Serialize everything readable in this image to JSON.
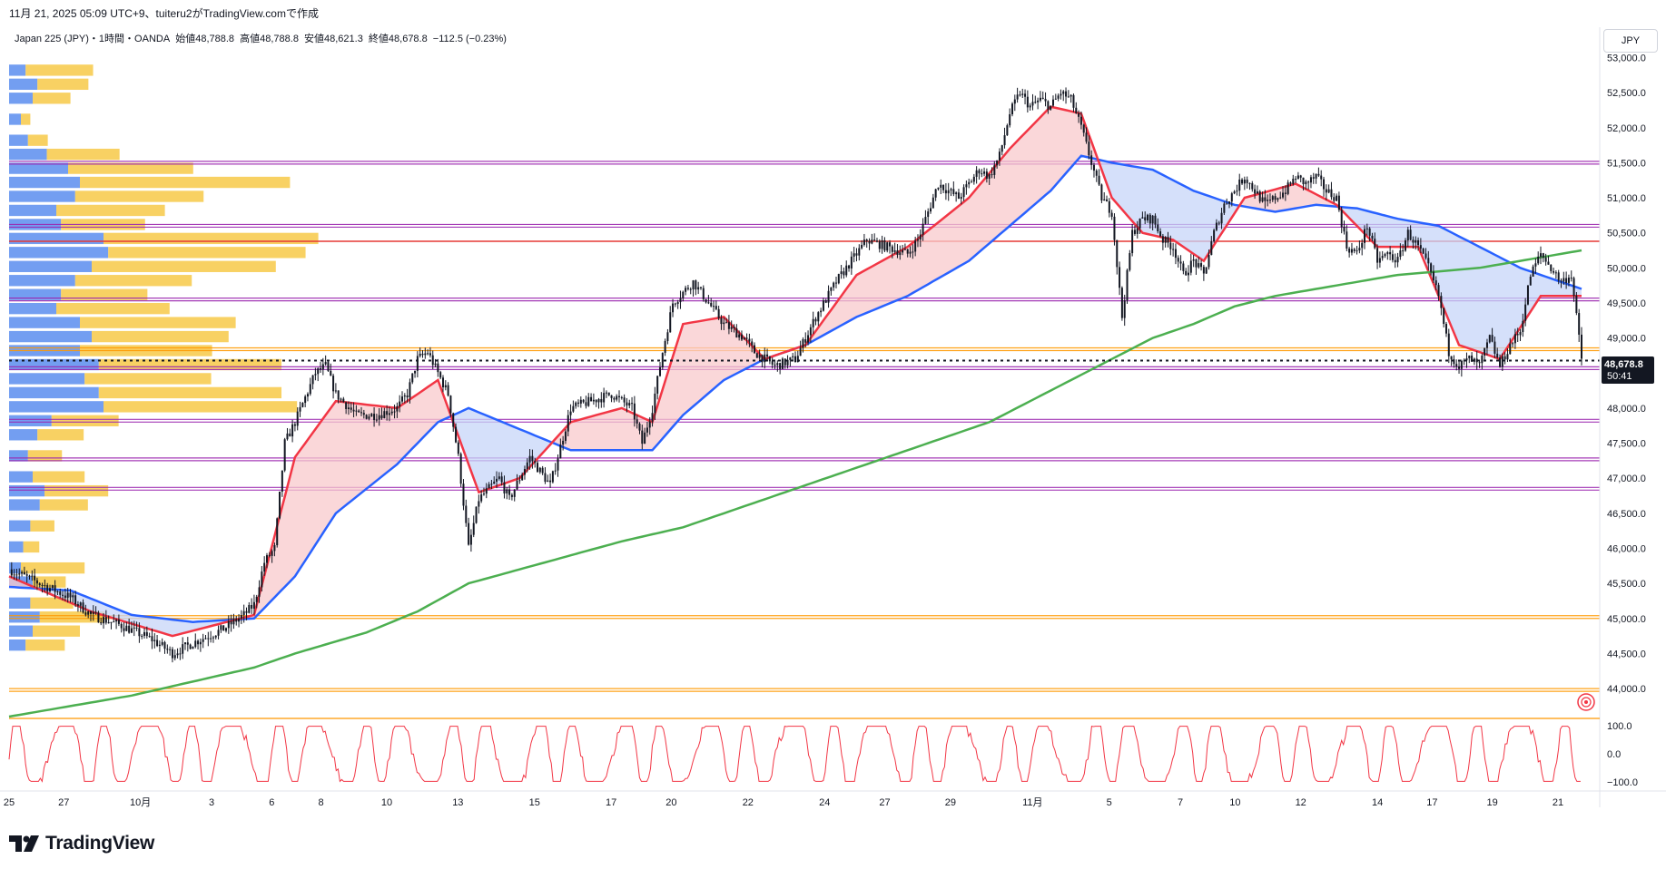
{
  "caption": "11月 21, 2025 05:09 UTC+9、tuiteru2がTradingView.comで作成",
  "legend": {
    "symbol": "Japan 225 (JPY)・1時間・OANDA",
    "open": "始値48,788.8",
    "high": "高値48,788.8",
    "low": "安値48,621.3",
    "close": "終値48,678.8",
    "change": "−112.5 (−0.23%)"
  },
  "currency": "JPY",
  "price_tag": {
    "price": "48,678.8",
    "countdown": "50:41"
  },
  "brand": {
    "name": "TradingView"
  },
  "colors": {
    "candle": "#131722",
    "ema_fast": "#f23645",
    "ema_slow": "#2962ff",
    "sma_long": "#4caf50",
    "fill_bull": "#f8c9cc",
    "fill_bear": "#c7d6f8",
    "vp_up": "#5b8def",
    "vp_down": "#f7c948",
    "level_purple": "#9c27b0",
    "level_orange": "#ff9800",
    "level_red": "#e53935",
    "oscillator": "#f23645"
  },
  "chart_data": [
    {
      "type": "candlestick",
      "title": "",
      "xlabel": "",
      "ylabel": "",
      "ylim": [
        43600,
        53200
      ],
      "y_ticks": [
        "53,000.0",
        "52,500.0",
        "52,000.0",
        "51,500.0",
        "51,000.0",
        "50,500.0",
        "50,000.0",
        "49,500.0",
        "49,000.0",
        "48,500.0",
        "48,000.0",
        "47,500.0",
        "47,000.0",
        "46,500.0",
        "46,000.0",
        "45,500.0",
        "45,000.0",
        "44,500.0",
        "44,000.0"
      ],
      "x_ticks": [
        "25",
        "27",
        "10月",
        "3",
        "6",
        "8",
        "10",
        "13",
        "15",
        "17",
        "20",
        "22",
        "24",
        "27",
        "29",
        "11月",
        "5",
        "7",
        "10",
        "12",
        "14",
        "17",
        "19",
        "21"
      ],
      "price_path": [
        [
          0,
          45700
        ],
        [
          3,
          45500
        ],
        [
          6,
          45300
        ],
        [
          8,
          45050
        ],
        [
          11,
          44900
        ],
        [
          14,
          44700
        ],
        [
          16,
          44500
        ],
        [
          18,
          44650
        ],
        [
          21,
          44850
        ],
        [
          23,
          45050
        ],
        [
          24,
          45200
        ],
        [
          25,
          45800
        ],
        [
          26,
          46000
        ],
        [
          27,
          47500
        ],
        [
          28,
          47800
        ],
        [
          30,
          48500
        ],
        [
          31,
          48600
        ],
        [
          32,
          48200
        ],
        [
          34,
          47900
        ],
        [
          36,
          47900
        ],
        [
          38,
          48000
        ],
        [
          39,
          48200
        ],
        [
          40,
          48700
        ],
        [
          41,
          48800
        ],
        [
          42,
          48500
        ],
        [
          43,
          48200
        ],
        [
          44,
          47300
        ],
        [
          45,
          46000
        ],
        [
          46,
          46700
        ],
        [
          48,
          47000
        ],
        [
          49,
          46700
        ],
        [
          51,
          47300
        ],
        [
          53,
          46900
        ],
        [
          55,
          48000
        ],
        [
          57,
          48100
        ],
        [
          59,
          48200
        ],
        [
          61,
          48000
        ],
        [
          62,
          47500
        ],
        [
          63,
          48000
        ],
        [
          64,
          48800
        ],
        [
          65,
          49500
        ],
        [
          67,
          49800
        ],
        [
          68,
          49600
        ],
        [
          70,
          49200
        ],
        [
          72,
          49000
        ],
        [
          73,
          48800
        ],
        [
          75,
          48600
        ],
        [
          77,
          48700
        ],
        [
          78,
          49000
        ],
        [
          79,
          49300
        ],
        [
          81,
          49800
        ],
        [
          83,
          50200
        ],
        [
          84,
          50400
        ],
        [
          86,
          50300
        ],
        [
          88,
          50200
        ],
        [
          89,
          50400
        ],
        [
          90,
          50800
        ],
        [
          91,
          51200
        ],
        [
          93,
          51000
        ],
        [
          94,
          51200
        ],
        [
          95,
          51400
        ],
        [
          96,
          51300
        ],
        [
          97,
          51600
        ],
        [
          98,
          52200
        ],
        [
          99,
          52500
        ],
        [
          100,
          52300
        ],
        [
          101,
          52400
        ],
        [
          102,
          52300
        ],
        [
          103,
          52500
        ],
        [
          104,
          52400
        ],
        [
          105,
          52000
        ],
        [
          106,
          51500
        ],
        [
          107,
          51000
        ],
        [
          108,
          50800
        ],
        [
          109,
          49300
        ],
        [
          110,
          50500
        ],
        [
          111,
          50700
        ],
        [
          112,
          50700
        ],
        [
          113,
          50400
        ],
        [
          114,
          50300
        ],
        [
          115,
          49900
        ],
        [
          116,
          50100
        ],
        [
          117,
          49900
        ],
        [
          118,
          50500
        ],
        [
          119,
          50900
        ],
        [
          120,
          51100
        ],
        [
          121,
          51300
        ],
        [
          122,
          51100
        ],
        [
          123,
          50900
        ],
        [
          124,
          51000
        ],
        [
          125,
          51100
        ],
        [
          126,
          51300
        ],
        [
          127,
          51200
        ],
        [
          128,
          51300
        ],
        [
          129,
          51100
        ],
        [
          130,
          51000
        ],
        [
          131,
          50300
        ],
        [
          132,
          50200
        ],
        [
          133,
          50600
        ],
        [
          134,
          50100
        ],
        [
          135,
          50200
        ],
        [
          136,
          50100
        ],
        [
          137,
          50500
        ],
        [
          138,
          50300
        ],
        [
          139,
          50000
        ],
        [
          140,
          49600
        ],
        [
          141,
          48800
        ],
        [
          142,
          48600
        ],
        [
          143,
          48700
        ],
        [
          144,
          48600
        ],
        [
          145,
          49000
        ],
        [
          146,
          48600
        ],
        [
          147,
          48900
        ],
        [
          148,
          49100
        ],
        [
          149,
          49900
        ],
        [
          150,
          50200
        ],
        [
          151,
          50000
        ],
        [
          152,
          49800
        ],
        [
          153,
          49900
        ],
        [
          154,
          48700
        ]
      ],
      "series": [
        {
          "name": "",
          "line": "ema_fast",
          "values": [
            [
              0,
              45600
            ],
            [
              8,
              45100
            ],
            [
              16,
              44750
            ],
            [
              24,
              45050
            ],
            [
              28,
              47300
            ],
            [
              32,
              48100
            ],
            [
              38,
              48000
            ],
            [
              42,
              48400
            ],
            [
              46,
              46800
            ],
            [
              50,
              47000
            ],
            [
              55,
              47800
            ],
            [
              60,
              48000
            ],
            [
              63,
              47800
            ],
            [
              66,
              49200
            ],
            [
              70,
              49300
            ],
            [
              74,
              48700
            ],
            [
              78,
              48900
            ],
            [
              83,
              49900
            ],
            [
              88,
              50300
            ],
            [
              94,
              51000
            ],
            [
              98,
              51700
            ],
            [
              102,
              52300
            ],
            [
              105,
              52200
            ],
            [
              108,
              51000
            ],
            [
              111,
              50500
            ],
            [
              114,
              50400
            ],
            [
              117,
              50100
            ],
            [
              121,
              51000
            ],
            [
              126,
              51200
            ],
            [
              130,
              50900
            ],
            [
              134,
              50300
            ],
            [
              138,
              50300
            ],
            [
              142,
              48900
            ],
            [
              146,
              48700
            ],
            [
              150,
              49600
            ],
            [
              154,
              49600
            ]
          ]
        },
        {
          "name": "",
          "line": "ema_slow",
          "values": [
            [
              0,
              45450
            ],
            [
              6,
              45400
            ],
            [
              12,
              45050
            ],
            [
              18,
              44950
            ],
            [
              24,
              45000
            ],
            [
              28,
              45600
            ],
            [
              32,
              46500
            ],
            [
              38,
              47200
            ],
            [
              42,
              47800
            ],
            [
              45,
              48000
            ],
            [
              50,
              47700
            ],
            [
              55,
              47400
            ],
            [
              60,
              47400
            ],
            [
              63,
              47400
            ],
            [
              66,
              47900
            ],
            [
              70,
              48400
            ],
            [
              74,
              48700
            ],
            [
              78,
              48900
            ],
            [
              83,
              49300
            ],
            [
              88,
              49600
            ],
            [
              94,
              50100
            ],
            [
              98,
              50600
            ],
            [
              102,
              51100
            ],
            [
              105,
              51600
            ],
            [
              108,
              51500
            ],
            [
              112,
              51400
            ],
            [
              116,
              51100
            ],
            [
              120,
              50900
            ],
            [
              124,
              50800
            ],
            [
              128,
              50900
            ],
            [
              132,
              50850
            ],
            [
              136,
              50700
            ],
            [
              140,
              50600
            ],
            [
              144,
              50300
            ],
            [
              148,
              50000
            ],
            [
              152,
              49800
            ],
            [
              154,
              49700
            ]
          ]
        },
        {
          "name": "",
          "line": "sma_long",
          "values": [
            [
              0,
              43600
            ],
            [
              12,
              43900
            ],
            [
              24,
              44300
            ],
            [
              28,
              44500
            ],
            [
              35,
              44800
            ],
            [
              40,
              45100
            ],
            [
              45,
              45500
            ],
            [
              50,
              45700
            ],
            [
              55,
              45900
            ],
            [
              60,
              46100
            ],
            [
              66,
              46300
            ],
            [
              72,
              46600
            ],
            [
              78,
              46900
            ],
            [
              84,
              47200
            ],
            [
              90,
              47500
            ],
            [
              96,
              47800
            ],
            [
              100,
              48100
            ],
            [
              104,
              48400
            ],
            [
              108,
              48700
            ],
            [
              112,
              49000
            ],
            [
              116,
              49200
            ],
            [
              120,
              49450
            ],
            [
              124,
              49600
            ],
            [
              128,
              49700
            ],
            [
              132,
              49800
            ],
            [
              136,
              49900
            ],
            [
              140,
              49950
            ],
            [
              144,
              50000
            ],
            [
              148,
              50100
            ],
            [
              152,
              50200
            ],
            [
              154,
              50250
            ]
          ]
        }
      ],
      "levels": [
        {
          "price": 51500,
          "color": "purple"
        },
        {
          "price": 50600,
          "color": "purple"
        },
        {
          "price": 50380,
          "color": "red"
        },
        {
          "price": 49550,
          "color": "purple"
        },
        {
          "price": 48840,
          "color": "orange"
        },
        {
          "price": 48570,
          "color": "purple"
        },
        {
          "price": 47820,
          "color": "purple"
        },
        {
          "price": 47270,
          "color": "purple"
        },
        {
          "price": 46850,
          "color": "purple"
        },
        {
          "price": 45020,
          "color": "orange"
        },
        {
          "price": 43980,
          "color": "orange"
        }
      ],
      "current_price": 48678.8,
      "volume_profile": [
        {
          "price": 52800,
          "up": 0.07,
          "down": 0.3
        },
        {
          "price": 52600,
          "up": 0.12,
          "down": 0.24
        },
        {
          "price": 52400,
          "up": 0.1,
          "down": 0.18
        },
        {
          "price": 52100,
          "up": 0.05,
          "down": 0.05
        },
        {
          "price": 51800,
          "up": 0.08,
          "down": 0.1
        },
        {
          "price": 51600,
          "up": 0.16,
          "down": 0.34
        },
        {
          "price": 51400,
          "up": 0.25,
          "down": 0.58
        },
        {
          "price": 51200,
          "up": 0.3,
          "down": 0.95
        },
        {
          "price": 51000,
          "up": 0.28,
          "down": 0.6
        },
        {
          "price": 50800,
          "up": 0.2,
          "down": 0.5
        },
        {
          "price": 50600,
          "up": 0.22,
          "down": 0.4
        },
        {
          "price": 50400,
          "up": 0.4,
          "down": 0.99
        },
        {
          "price": 50200,
          "up": 0.42,
          "down": 0.92
        },
        {
          "price": 50000,
          "up": 0.35,
          "down": 0.85
        },
        {
          "price": 49800,
          "up": 0.28,
          "down": 0.55
        },
        {
          "price": 49600,
          "up": 0.22,
          "down": 0.41
        },
        {
          "price": 49400,
          "up": 0.2,
          "down": 0.52
        },
        {
          "price": 49200,
          "up": 0.3,
          "down": 0.72
        },
        {
          "price": 49000,
          "up": 0.35,
          "down": 0.65
        },
        {
          "price": 48800,
          "up": 0.3,
          "down": 0.62
        },
        {
          "price": 48600,
          "up": 0.38,
          "down": 0.85
        },
        {
          "price": 48400,
          "up": 0.32,
          "down": 0.6
        },
        {
          "price": 48200,
          "up": 0.38,
          "down": 0.85
        },
        {
          "price": 48000,
          "up": 0.4,
          "down": 0.9
        },
        {
          "price": 47800,
          "up": 0.18,
          "down": 0.32
        },
        {
          "price": 47600,
          "up": 0.12,
          "down": 0.22
        },
        {
          "price": 47300,
          "up": 0.08,
          "down": 0.16
        },
        {
          "price": 47000,
          "up": 0.1,
          "down": 0.24
        },
        {
          "price": 46800,
          "up": 0.15,
          "down": 0.3
        },
        {
          "price": 46600,
          "up": 0.13,
          "down": 0.23
        },
        {
          "price": 46300,
          "up": 0.09,
          "down": 0.12
        },
        {
          "price": 46000,
          "up": 0.06,
          "down": 0.08
        },
        {
          "price": 45700,
          "up": 0.05,
          "down": 0.28
        },
        {
          "price": 45500,
          "up": 0.1,
          "down": 0.16
        },
        {
          "price": 45200,
          "up": 0.09,
          "down": 0.2
        },
        {
          "price": 45000,
          "up": 0.13,
          "down": 0.3
        },
        {
          "price": 44800,
          "up": 0.1,
          "down": 0.22
        },
        {
          "price": 44600,
          "up": 0.07,
          "down": 0.18
        }
      ]
    },
    {
      "type": "line",
      "title": "",
      "xlabel": "",
      "ylabel": "",
      "ylim": [
        -100,
        100
      ],
      "y_ticks": [
        "100.0",
        "0.0",
        "−100.0"
      ],
      "oscillator_period": 4.2,
      "values_note": ""
    }
  ]
}
